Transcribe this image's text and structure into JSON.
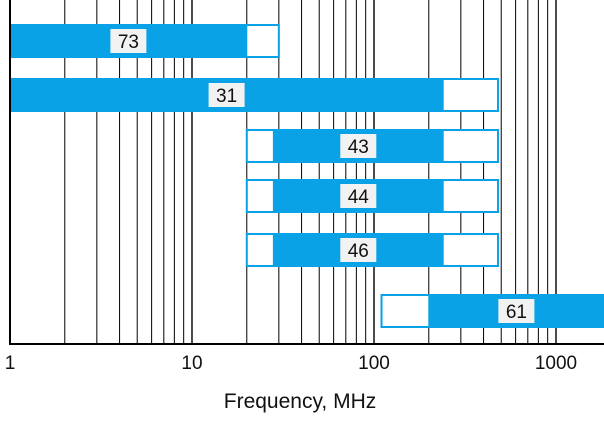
{
  "chart_data": {
    "type": "bar",
    "orientation": "horizontal",
    "xscale": "log",
    "xlim": [
      1,
      2000
    ],
    "xlabel": "Frequency, MHz",
    "ylabel": "",
    "title": "",
    "grid": true,
    "x_ticks": [
      {
        "value": 1,
        "label": "1"
      },
      {
        "value": 10,
        "label": "10"
      },
      {
        "value": 100,
        "label": "100"
      },
      {
        "value": 1000,
        "label": "1000"
      }
    ],
    "bars": [
      {
        "label": "73",
        "start": 1,
        "solid_end": 20,
        "range_end": 30
      },
      {
        "label": "31",
        "start": 1,
        "solid_end": 240,
        "range_end": 480
      },
      {
        "label": "43",
        "range_start": 20,
        "solid_start": 28,
        "solid_end": 240,
        "range_end": 480
      },
      {
        "label": "44",
        "range_start": 20,
        "solid_start": 28,
        "solid_end": 240,
        "range_end": 480
      },
      {
        "label": "46",
        "range_start": 20,
        "solid_start": 28,
        "solid_end": 240,
        "range_end": 480
      },
      {
        "label": "61",
        "range_start": 110,
        "solid_start": 200,
        "solid_end": 2000
      }
    ]
  },
  "colors": {
    "bar_fill": "#0aa2e6",
    "bar_outline": "#0aa2e6",
    "grid": "#000000",
    "label_box": "#f2f2f2"
  }
}
